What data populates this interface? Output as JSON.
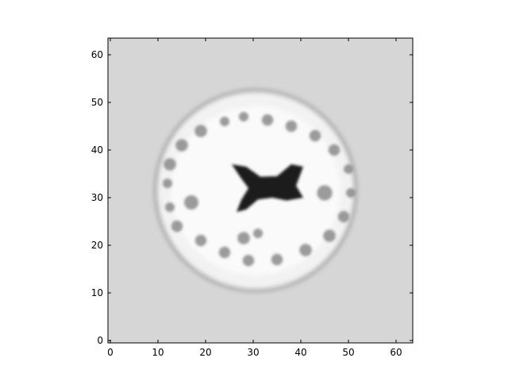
{
  "chart_data": {
    "type": "heatmap",
    "title": "",
    "xlabel": "",
    "ylabel": "",
    "xlim": [
      -0.5,
      63.5
    ],
    "ylim": [
      63.5,
      -0.5
    ],
    "x_ticks": [
      0,
      10,
      20,
      30,
      40,
      50,
      60
    ],
    "y_ticks": [
      0,
      10,
      20,
      30,
      40,
      50,
      60
    ],
    "grid": false,
    "colormap": "gray",
    "image_content": "axial brain MRI slice, 64x64 grayscale",
    "background_color": "#d6d6d6",
    "brain_color": "#f2f2f2",
    "ventricle_color": "#1a1a1a"
  }
}
